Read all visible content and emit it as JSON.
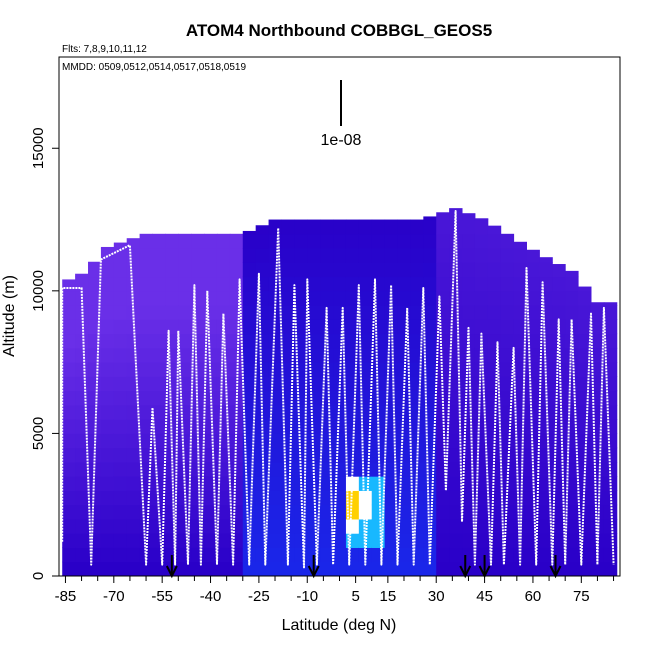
{
  "chart_data": {
    "type": "heatmap",
    "title": "ATOM4 Northbound COBBGL_GEOS5",
    "flights_label": "Flts: 7,8,9,10,11,12",
    "dates_label": "MMDD: 0509,0512,0514,0517,0518,0519",
    "xlabel": "Latitude (deg N)",
    "ylabel": "Altitude (m)",
    "xlim": [
      -87,
      87
    ],
    "ylim": [
      0,
      18200
    ],
    "x_ticks": [
      -85,
      -70,
      -55,
      -40,
      -25,
      -10,
      5,
      15,
      30,
      45,
      60,
      75
    ],
    "y_ticks": [
      0,
      5000,
      10000,
      15000
    ],
    "scale_bar_label": "1e-08",
    "flight_track_color": "#ffffff",
    "colormap": [
      "#2a00c8",
      "#6a2fe8",
      "#1040ff",
      "#18b8ff",
      "#ffffff",
      "#ffd000",
      "#e01010"
    ],
    "curtain_top_profile": [
      {
        "lat": -84,
        "alt": 10400
      },
      {
        "lat": -78,
        "alt": 10700
      },
      {
        "lat": -73,
        "alt": 11500
      },
      {
        "lat": -60,
        "alt": 12000
      },
      {
        "lat": -45,
        "alt": 12000
      },
      {
        "lat": -30,
        "alt": 12000
      },
      {
        "lat": -20,
        "alt": 12500
      },
      {
        "lat": 10,
        "alt": 12500
      },
      {
        "lat": 25,
        "alt": 12500
      },
      {
        "lat": 36,
        "alt": 12900
      },
      {
        "lat": 45,
        "alt": 12500
      },
      {
        "lat": 52,
        "alt": 12000
      },
      {
        "lat": 62,
        "alt": 11300
      },
      {
        "lat": 72,
        "alt": 10700
      },
      {
        "lat": 80,
        "alt": 9600
      }
    ],
    "enhancement_region": {
      "lat_range": [
        3,
        12
      ],
      "alt_range": [
        1200,
        3500
      ],
      "peak": {
        "lat": 5,
        "alt": 2500
      }
    },
    "flight_track_peaks": [
      {
        "lat": -86,
        "alt": 10100
      },
      {
        "lat": -80,
        "alt": 10100
      },
      {
        "lat": -74,
        "alt": 11100
      },
      {
        "lat": -65,
        "alt": 11600
      },
      {
        "lat": -58,
        "alt": 5900
      },
      {
        "lat": -53,
        "alt": 8600
      },
      {
        "lat": -50,
        "alt": 8600
      },
      {
        "lat": -45,
        "alt": 10200
      },
      {
        "lat": -41,
        "alt": 10000
      },
      {
        "lat": -36,
        "alt": 9200
      },
      {
        "lat": -31,
        "alt": 10400
      },
      {
        "lat": -25,
        "alt": 10600
      },
      {
        "lat": -19,
        "alt": 12200
      },
      {
        "lat": -14,
        "alt": 10200
      },
      {
        "lat": -10,
        "alt": 10400
      },
      {
        "lat": -4,
        "alt": 9400
      },
      {
        "lat": 1,
        "alt": 9400
      },
      {
        "lat": 6,
        "alt": 10200
      },
      {
        "lat": 11,
        "alt": 10400
      },
      {
        "lat": 16,
        "alt": 10200
      },
      {
        "lat": 21,
        "alt": 9400
      },
      {
        "lat": 26,
        "alt": 10100
      },
      {
        "lat": 31,
        "alt": 9800
      },
      {
        "lat": 36,
        "alt": 12800
      },
      {
        "lat": 40,
        "alt": 8700
      },
      {
        "lat": 44,
        "alt": 8500
      },
      {
        "lat": 49,
        "alt": 8200
      },
      {
        "lat": 54,
        "alt": 8000
      },
      {
        "lat": 58,
        "alt": 10800
      },
      {
        "lat": 63,
        "alt": 10300
      },
      {
        "lat": 68,
        "alt": 9000
      },
      {
        "lat": 72,
        "alt": 9000
      },
      {
        "lat": 78,
        "alt": 9200
      },
      {
        "lat": 82,
        "alt": 9400
      }
    ],
    "flight_track_troughs": [
      {
        "lat": -86,
        "alt": 1200
      },
      {
        "lat": -77,
        "alt": 400
      },
      {
        "lat": -60,
        "alt": 400
      },
      {
        "lat": -55,
        "alt": 400
      },
      {
        "lat": -51,
        "alt": 400
      },
      {
        "lat": -47,
        "alt": 400
      },
      {
        "lat": -43,
        "alt": 400
      },
      {
        "lat": -38,
        "alt": 400
      },
      {
        "lat": -33,
        "alt": 400
      },
      {
        "lat": -28,
        "alt": 400
      },
      {
        "lat": -23,
        "alt": 400
      },
      {
        "lat": -16,
        "alt": 400
      },
      {
        "lat": -11,
        "alt": 300
      },
      {
        "lat": -7,
        "alt": 400
      },
      {
        "lat": -2,
        "alt": 400
      },
      {
        "lat": 3,
        "alt": 400
      },
      {
        "lat": 8,
        "alt": 400
      },
      {
        "lat": 13,
        "alt": 400
      },
      {
        "lat": 18,
        "alt": 400
      },
      {
        "lat": 23,
        "alt": 400
      },
      {
        "lat": 28,
        "alt": 400
      },
      {
        "lat": 33,
        "alt": 3000
      },
      {
        "lat": 38,
        "alt": 1900
      },
      {
        "lat": 42,
        "alt": 400
      },
      {
        "lat": 47,
        "alt": 400
      },
      {
        "lat": 51,
        "alt": 400
      },
      {
        "lat": 56,
        "alt": 400
      },
      {
        "lat": 61,
        "alt": 400
      },
      {
        "lat": 66,
        "alt": 400
      },
      {
        "lat": 70,
        "alt": 400
      },
      {
        "lat": 75,
        "alt": 400
      },
      {
        "lat": 80,
        "alt": 400
      },
      {
        "lat": 85,
        "alt": 400
      }
    ],
    "arrow_markers_lat": [
      -52,
      -8,
      39,
      45,
      67
    ]
  }
}
